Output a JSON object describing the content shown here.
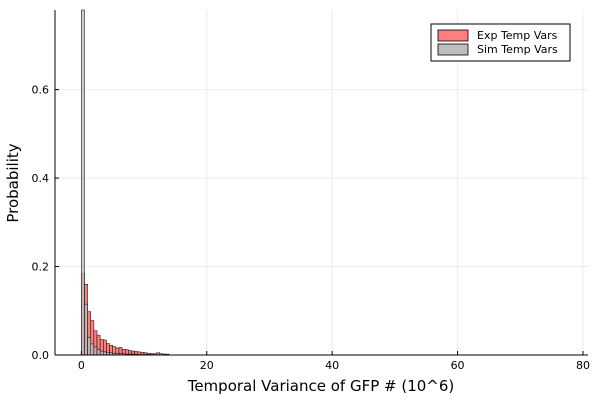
{
  "chart_data": {
    "type": "bar",
    "title": "",
    "xlabel": "Temporal Variance of GFP # (10^6)",
    "ylabel": "Probability",
    "xlim": [
      -4.2,
      80.8
    ],
    "ylim": [
      0,
      0.78
    ],
    "xticks": [
      0,
      20,
      40,
      60,
      80
    ],
    "yticks": [
      0.0,
      0.2,
      0.4,
      0.6
    ],
    "ytick_labels": [
      "0.0",
      "0.2",
      "0.4",
      "0.6"
    ],
    "grid": true,
    "legend_position": "top-right",
    "series": [
      {
        "name": "Exp Temp Vars",
        "color": "#ff7f7f",
        "bin_width": 0.5,
        "bin_starts": [
          0,
          0.5,
          1,
          1.5,
          2,
          2.5,
          3,
          3.5,
          4,
          4.5,
          5,
          5.5,
          6,
          6.5,
          7,
          7.5,
          8,
          8.5,
          9,
          9.5,
          10,
          10.5,
          11,
          11.5,
          12,
          12.5,
          13,
          13.5
        ],
        "values": [
          0.185,
          0.16,
          0.098,
          0.078,
          0.055,
          0.045,
          0.035,
          0.034,
          0.026,
          0.022,
          0.019,
          0.016,
          0.017,
          0.013,
          0.012,
          0.01,
          0.009,
          0.008,
          0.007,
          0.006,
          0.005,
          0.004,
          0.003,
          0.003,
          0.005,
          0.003,
          0.002,
          0.002
        ]
      },
      {
        "name": "Sim Temp Vars",
        "color": "#bdbdbd",
        "bin_width": 0.5,
        "bin_starts": [
          0,
          0.5,
          1,
          1.5,
          2,
          2.5,
          3,
          3.5,
          4,
          4.5,
          5,
          5.5,
          6,
          6.5,
          7,
          7.5,
          8,
          8.5,
          9,
          9.5,
          10,
          10.5,
          11
        ],
        "values": [
          0.78,
          0.115,
          0.04,
          0.025,
          0.018,
          0.012,
          0.009,
          0.007,
          0.006,
          0.005,
          0.004,
          0.004,
          0.003,
          0.003,
          0.002,
          0.002,
          0.002,
          0.002,
          0.001,
          0.001,
          0.001,
          0.001,
          0.001
        ]
      }
    ]
  }
}
